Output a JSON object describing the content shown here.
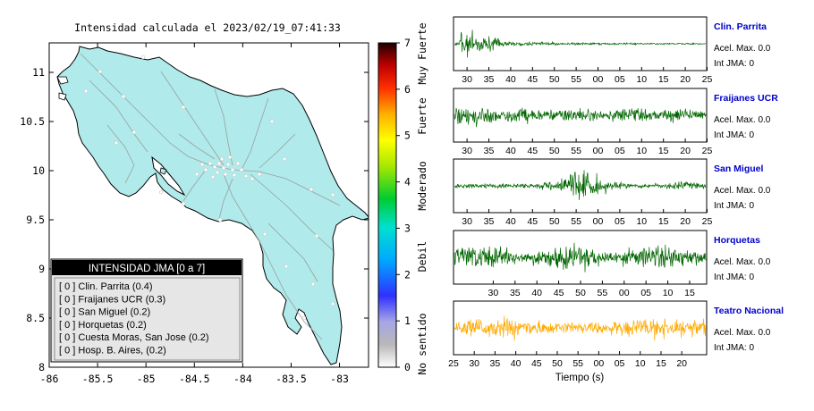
{
  "title": "Intensidad calculada el 2023/02/19_07:41:33",
  "map": {
    "x_ticks": [
      "-86",
      "-85.5",
      "-85",
      "-84.5",
      "-84",
      "-83.5",
      "-83"
    ],
    "y_ticks": [
      "11",
      "10.5",
      "10",
      "9.5",
      "9",
      "8.5",
      "8"
    ],
    "x_range": [
      -86,
      -82.7
    ],
    "y_range": [
      8,
      11.3
    ],
    "land_color": "#b0eaea"
  },
  "colorbar": {
    "ticks": [
      "0",
      "1",
      "2",
      "3",
      "4",
      "5",
      "6",
      "7"
    ],
    "range": [
      0,
      7
    ],
    "labels": [
      "No sentido",
      "Debil",
      "Moderado",
      "Fuerte",
      "Muy Fuerte"
    ]
  },
  "legend": {
    "header": "INTENSIDAD JMA [0 a 7]",
    "items": [
      "[ 0 ]  Clin. Parrita (0.4)",
      "[ 0 ]  Fraijanes UCR (0.3)",
      "[ 0 ]  San Miguel (0.2)",
      "[ 0 ]  Horquetas (0.2)",
      "[ 0 ]  Cuesta Moras, San Jose (0.2)",
      "[ 0 ]  Hosp. B. Aires, (0.2)"
    ]
  },
  "traces": [
    {
      "station": "Clin. Parrita",
      "accel": "Acel. Max. 0.0",
      "int": "Int JMA: 0",
      "color": "#006600",
      "ticks": [
        "30",
        "35",
        "40",
        "45",
        "50",
        "55",
        "00",
        "05",
        "10",
        "15",
        "20",
        "25"
      ],
      "ticks_start": 30,
      "ticks_shift": 0.4
    },
    {
      "station": "Fraijanes UCR",
      "accel": "Acel. Max. 0.0",
      "int": "Int JMA: 0",
      "color": "#006600",
      "ticks": [
        "30",
        "35",
        "40",
        "45",
        "50",
        "55",
        "00",
        "05",
        "10",
        "15",
        "20",
        "25"
      ],
      "ticks_start": 30,
      "ticks_shift": 0.4
    },
    {
      "station": "San Miguel",
      "accel": "Acel. Max. 0.0",
      "int": "Int JMA: 0",
      "color": "#006600",
      "ticks": [
        "30",
        "35",
        "40",
        "45",
        "50",
        "55",
        "00",
        "05",
        "10",
        "15",
        "20",
        "25"
      ],
      "ticks_start": 30,
      "ticks_shift": 0.4
    },
    {
      "station": "Horquetas",
      "accel": "Acel. Max. 0.0",
      "int": "Int JMA: 0",
      "color": "#006600",
      "ticks": [
        "30",
        "35",
        "40",
        "45",
        "50",
        "55",
        "00",
        "05",
        "10",
        "15",
        "20",
        "25"
      ],
      "ticks_start": 30,
      "ticks_shift": 1.6
    },
    {
      "station": "Teatro Nacional",
      "accel": "Acel. Max. 0.0",
      "int": "Int JMA: 0",
      "color": "#ffaa00",
      "ticks": [
        "25",
        "30",
        "35",
        "40",
        "45",
        "50",
        "55",
        "00",
        "05",
        "10",
        "15",
        "20"
      ],
      "ticks_start": 25,
      "ticks_shift": 0
    }
  ],
  "time_label": "Tiempo (s)"
}
